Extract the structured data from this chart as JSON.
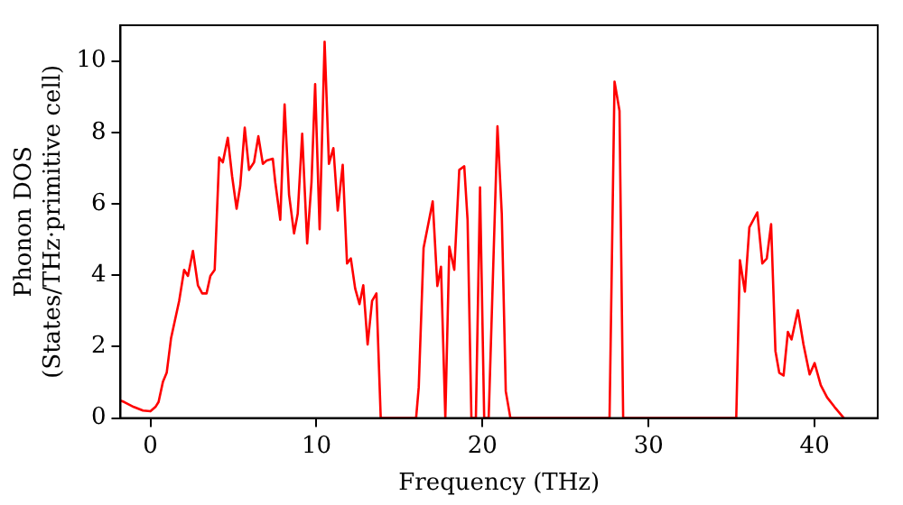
{
  "chart_data": {
    "type": "line",
    "xlabel": "Frequency (THz)",
    "ylabel": "Phonon DOS\n(States/THz·primitive cell)",
    "xlim": [
      -1.8,
      43.8
    ],
    "ylim": [
      0,
      11
    ],
    "xticks": [
      0,
      10,
      20,
      30,
      40
    ],
    "yticks": [
      0,
      2,
      4,
      6,
      8,
      10
    ],
    "grid": false,
    "legend": false,
    "marker": "none",
    "line_style": "solid",
    "series": [
      {
        "color": "#ff0000",
        "x": [
          -1.8,
          -1.58,
          -1.0,
          -0.45,
          0,
          0.3,
          0.49,
          0.75,
          0.98,
          1.24,
          1.73,
          2.03,
          2.26,
          2.56,
          2.86,
          3.12,
          3.38,
          3.61,
          3.87,
          4.14,
          4.36,
          4.66,
          4.92,
          5.19,
          5.41,
          5.68,
          5.94,
          6.24,
          6.5,
          6.77,
          7.0,
          7.37,
          7.52,
          7.82,
          8.08,
          8.35,
          8.65,
          8.87,
          9.14,
          9.44,
          9.7,
          9.92,
          10.19,
          10.49,
          10.75,
          11.02,
          11.28,
          11.58,
          11.84,
          12.07,
          12.33,
          12.59,
          12.82,
          13.08,
          13.35,
          13.61,
          13.87,
          16.0,
          16.16,
          16.45,
          17.0,
          17.28,
          17.5,
          17.76,
          18.0,
          18.3,
          18.6,
          18.9,
          19.1,
          19.33,
          19.6,
          19.85,
          20.1,
          20.37,
          20.9,
          21.16,
          21.4,
          21.68,
          27.65,
          27.95,
          28.25,
          28.47,
          35.28,
          35.5,
          35.8,
          36.07,
          36.55,
          36.85,
          37.12,
          37.38,
          37.64,
          37.87,
          38.13,
          38.39,
          38.61,
          38.99,
          39.33,
          39.7,
          40.0,
          40.37,
          40.75,
          41.2,
          41.76
        ],
        "values": [
          0.49,
          0.45,
          0.31,
          0.21,
          0.19,
          0.31,
          0.45,
          1.01,
          1.27,
          2.23,
          3.28,
          4.15,
          3.98,
          4.68,
          3.72,
          3.49,
          3.49,
          3.98,
          4.15,
          7.3,
          7.16,
          7.85,
          6.77,
          5.86,
          6.51,
          8.13,
          6.95,
          7.16,
          7.89,
          7.12,
          7.21,
          7.26,
          6.6,
          5.55,
          8.78,
          6.25,
          5.17,
          5.72,
          7.96,
          4.89,
          6.6,
          9.35,
          5.29,
          10.54,
          7.12,
          7.56,
          5.81,
          7.09,
          4.33,
          4.47,
          3.63,
          3.19,
          3.72,
          2.06,
          3.28,
          3.49,
          0,
          0,
          0.87,
          4.76,
          6.07,
          3.7,
          4.24,
          0,
          4.8,
          4.15,
          6.95,
          7.05,
          5.55,
          0,
          0,
          6.46,
          0,
          0,
          8.17,
          5.72,
          0.75,
          0,
          0,
          9.42,
          8.6,
          0,
          0,
          4.42,
          3.54,
          5.34,
          5.76,
          4.33,
          4.47,
          5.43,
          1.88,
          1.27,
          1.19,
          2.41,
          2.2,
          3.02,
          2.06,
          1.22,
          1.54,
          0.92,
          0.58,
          0.31,
          0
        ]
      }
    ]
  }
}
